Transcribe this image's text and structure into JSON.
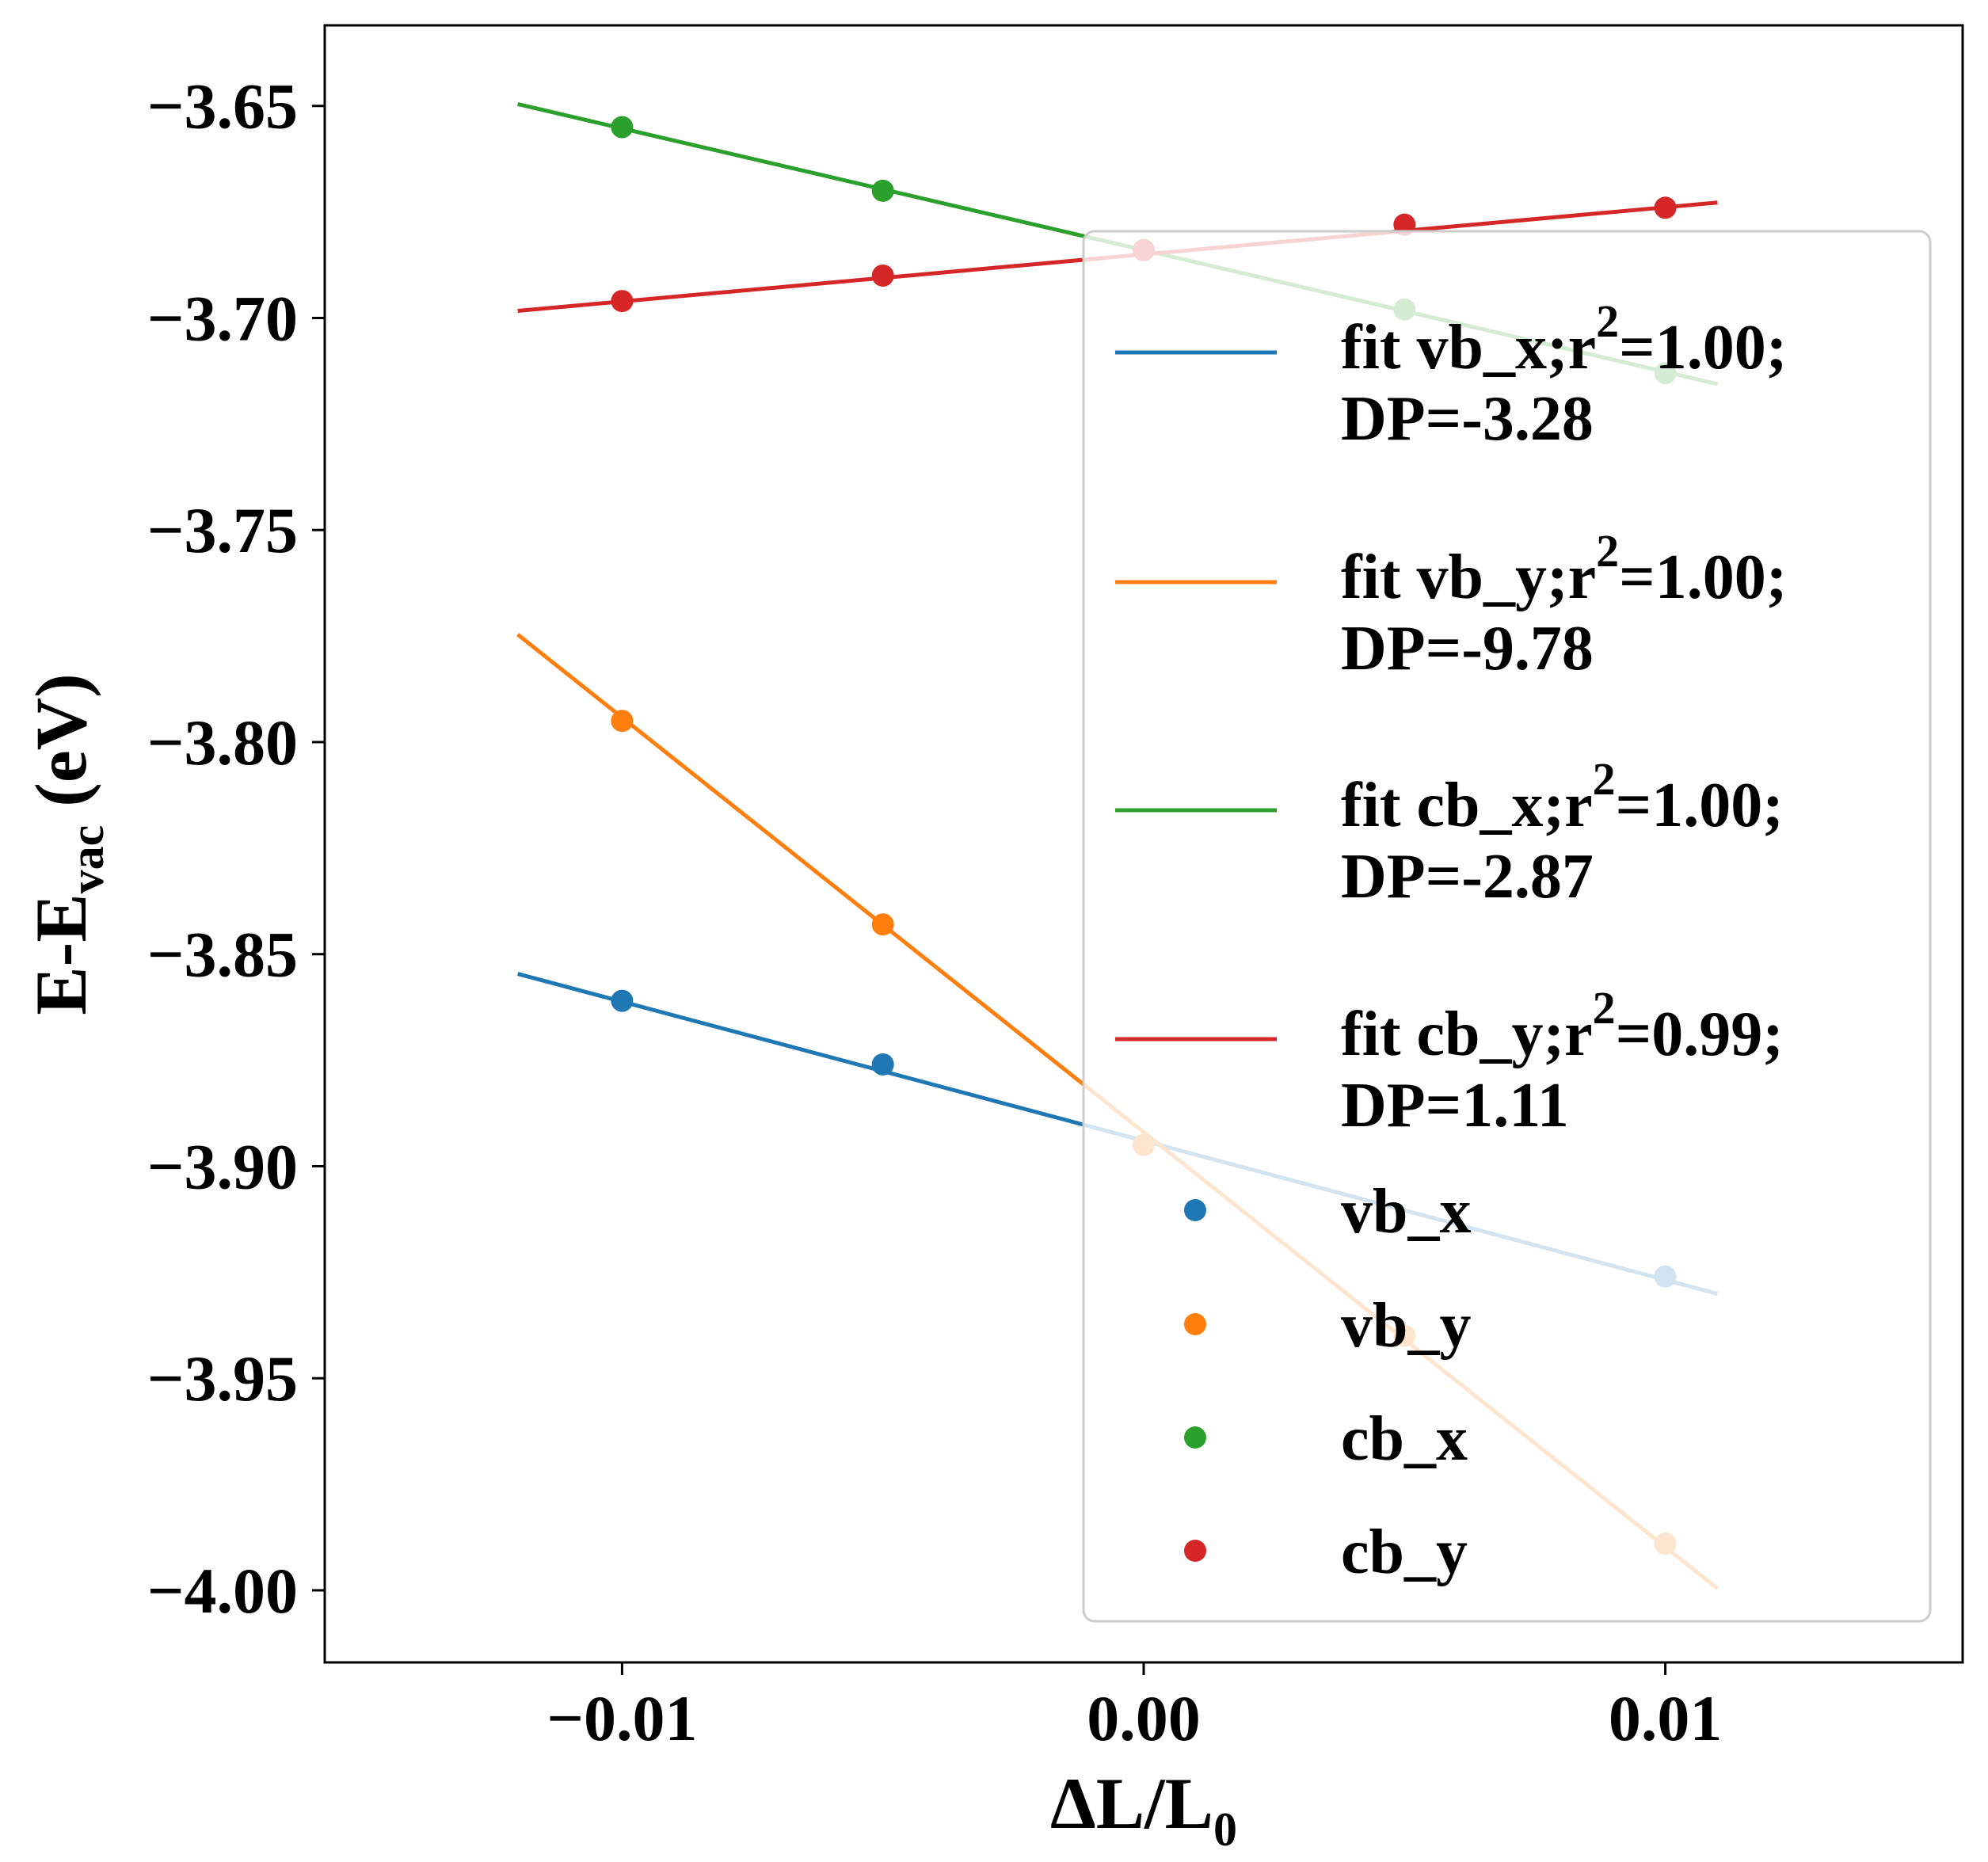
{
  "chart_data": {
    "type": "scatter",
    "xlabel": {
      "main": "ΔL/L",
      "sub": "0"
    },
    "ylabel": {
      "main": "E-E",
      "sub": "vac",
      "tail": " (eV)"
    },
    "xlim": [
      -0.0157,
      0.0157
    ],
    "ylim": [
      -4.017,
      -3.631
    ],
    "x_ticks": [
      {
        "value": -0.01,
        "label": "−0.01"
      },
      {
        "value": 0.0,
        "label": "0.00"
      },
      {
        "value": 0.01,
        "label": "0.01"
      }
    ],
    "y_ticks": [
      {
        "value": -3.65,
        "label": "−3.65"
      },
      {
        "value": -3.7,
        "label": "−3.70"
      },
      {
        "value": -3.75,
        "label": "−3.75"
      },
      {
        "value": -3.8,
        "label": "−3.80"
      },
      {
        "value": -3.85,
        "label": "−3.85"
      },
      {
        "value": -3.9,
        "label": "−3.90"
      },
      {
        "value": -3.95,
        "label": "−3.95"
      },
      {
        "value": -4.0,
        "label": "−4.00"
      }
    ],
    "grid": false,
    "legend_position": "right",
    "fit_x_range": [
      -0.012,
      0.011
    ],
    "series": [
      {
        "name": "vb_x",
        "color": "#1f77b4",
        "fit_label_line1": "fit vb_x;r",
        "fit_r2": "=1.00;",
        "fit_label_line2": "DP=-3.28",
        "x": [
          -0.01,
          -0.005,
          0.0,
          0.01
        ],
        "y": [
          -3.861,
          -3.876,
          -3.895,
          -3.926
        ],
        "slope": -3.28,
        "intercept": -3.894
      },
      {
        "name": "vb_y",
        "color": "#ff7f0e",
        "fit_label_line1": "fit vb_y;r",
        "fit_r2": "=1.00;",
        "fit_label_line2": "DP=-9.78",
        "x": [
          -0.01,
          -0.005,
          0.0,
          0.005,
          0.01
        ],
        "y": [
          -3.795,
          -3.843,
          -3.895,
          -3.94,
          -3.989
        ],
        "slope": -9.78,
        "intercept": -3.892
      },
      {
        "name": "cb_x",
        "color": "#2ca02c",
        "fit_label_line1": "fit cb_x;r",
        "fit_r2": "=1.00;",
        "fit_label_line2": "DP=-2.87",
        "x": [
          -0.01,
          -0.005,
          0.0,
          0.005,
          0.01
        ],
        "y": [
          -3.655,
          -3.67,
          -3.684,
          -3.698,
          -3.713
        ],
        "slope": -2.87,
        "intercept": -3.684
      },
      {
        "name": "cb_y",
        "color": "#d62728",
        "fit_label_line1": "fit cb_y;r",
        "fit_r2": "=0.99;",
        "fit_label_line2": "DP=1.11",
        "x": [
          -0.01,
          -0.005,
          0.0,
          0.005,
          0.01
        ],
        "y": [
          -3.696,
          -3.69,
          -3.684,
          -3.678,
          -3.674
        ],
        "slope": 1.11,
        "intercept": -3.685
      }
    ]
  }
}
